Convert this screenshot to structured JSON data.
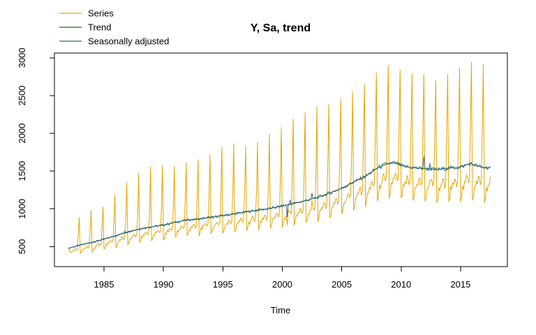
{
  "background": "#FFFFFF",
  "axes_color": "#000000",
  "chart_data": {
    "type": "line",
    "title": "Y, Sa, trend",
    "xlabel": "Time",
    "ylabel": "",
    "grid": false,
    "legend_position": "top-left",
    "x_ticks": [
      1985,
      1990,
      1995,
      2000,
      2005,
      2010,
      2015
    ],
    "y_ticks": [
      500,
      1000,
      1500,
      2000,
      2500,
      3000
    ],
    "xlim": [
      1980.83,
      2018.94
    ],
    "ylim": [
      235,
      3063
    ],
    "frequency": "monthly",
    "start": {
      "year": 1982,
      "month": 1
    },
    "end": {
      "year": 2017,
      "month": 7
    },
    "legend": [
      {
        "label": "Series",
        "color": "#E2A600"
      },
      {
        "label": "Trend",
        "color": "#2E6B1E"
      },
      {
        "label": "Seasonally adjusted",
        "color": "#2B6688"
      }
    ],
    "trend_anchors": [
      [
        1982.0,
        478
      ],
      [
        1983,
        520
      ],
      [
        1984,
        556
      ],
      [
        1985,
        598
      ],
      [
        1986,
        645
      ],
      [
        1987,
        695
      ],
      [
        1988,
        735
      ],
      [
        1989,
        762
      ],
      [
        1990,
        785
      ],
      [
        1991,
        822
      ],
      [
        1992,
        852
      ],
      [
        1993,
        865
      ],
      [
        1994,
        890
      ],
      [
        1995,
        910
      ],
      [
        1996,
        935
      ],
      [
        1997,
        960
      ],
      [
        1998,
        985
      ],
      [
        1999,
        1005
      ],
      [
        2000,
        1038
      ],
      [
        2001,
        1072
      ],
      [
        2002,
        1110
      ],
      [
        2003,
        1152
      ],
      [
        2004,
        1210
      ],
      [
        2005,
        1272
      ],
      [
        2006,
        1355
      ],
      [
        2007,
        1430
      ],
      [
        2008,
        1540
      ],
      [
        2008.8,
        1596
      ],
      [
        2009.5,
        1608
      ],
      [
        2010.2,
        1562
      ],
      [
        2011,
        1545
      ],
      [
        2012,
        1532
      ],
      [
        2013,
        1518
      ],
      [
        2014,
        1540
      ],
      [
        2015,
        1552
      ],
      [
        2015.8,
        1600
      ],
      [
        2016.3,
        1575
      ],
      [
        2016.8,
        1548
      ],
      [
        2017.6,
        1545
      ]
    ],
    "december_peaks": {
      "first_year": 1982,
      "values": [
        890,
        975,
        1025,
        1185,
        1345,
        1470,
        1560,
        1570,
        1565,
        1610,
        1650,
        1710,
        1815,
        1860,
        1830,
        1880,
        1985,
        2075,
        2190,
        2270,
        2355,
        2380,
        2450,
        2550,
        2650,
        2800,
        2900,
        2840,
        2790,
        2780,
        2700,
        2780,
        2870,
        2940,
        2910
      ]
    },
    "seasonal_factors_jan_nov": [
      0.745,
      0.77,
      0.85,
      0.84,
      0.88,
      0.875,
      0.925,
      0.91,
      0.865,
      0.895,
      1.29
    ],
    "seasonal_evolution": {
      "start_scale": 0.88,
      "end_scale": 1.18
    },
    "first_months_factors": [
      0.965,
      0.94
    ],
    "irregular_noise_pct": 1.8,
    "irregular_events": [
      {
        "year": 1986,
        "month": 10,
        "pct": 4
      },
      {
        "year": 1994,
        "month": 3,
        "pct": -4
      },
      {
        "year": 2000,
        "month": 6,
        "pct": -14
      },
      {
        "year": 2000,
        "month": 9,
        "pct": 5
      },
      {
        "year": 2002,
        "month": 7,
        "pct": 5
      },
      {
        "year": 2011,
        "month": 12,
        "pct": 11
      },
      {
        "year": 2012,
        "month": 6,
        "pct": 5
      }
    ]
  }
}
